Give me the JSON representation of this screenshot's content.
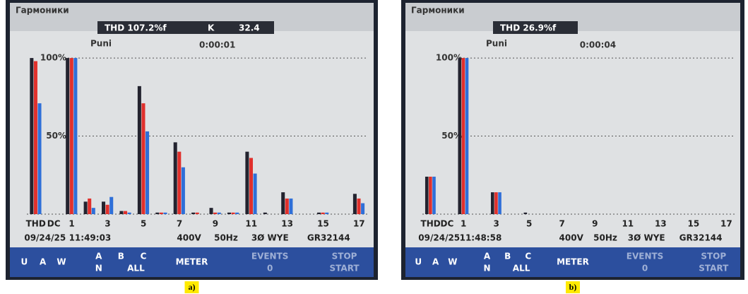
{
  "chart_data": [
    {
      "type": "bar",
      "screen_title": "Гармоники",
      "readouts": [
        "THD 107.2%f",
        "K",
        "32.4"
      ],
      "y_label": "Puni",
      "timer": "0:00:01",
      "categories": [
        "THD",
        "DC",
        "1",
        null,
        "3",
        null,
        "5",
        null,
        "7",
        null,
        "9",
        null,
        "11",
        null,
        "13",
        null,
        "15",
        null,
        "17"
      ],
      "series": [
        {
          "color": "#23232f",
          "values": [
            100,
            0,
            100,
            8,
            8,
            2,
            82,
            1,
            46,
            1,
            4,
            1,
            40,
            1,
            14,
            0,
            1,
            0,
            13
          ]
        },
        {
          "color": "#e0302c",
          "values": [
            98,
            0,
            100,
            10,
            6,
            2,
            71,
            1,
            40,
            1,
            1,
            1,
            36,
            0,
            10,
            0,
            1,
            0,
            10
          ]
        },
        {
          "color": "#2f6fd8",
          "values": [
            71,
            0,
            100,
            4,
            11,
            1,
            53,
            1,
            30,
            0,
            1,
            1,
            26,
            0,
            10,
            0,
            1,
            0,
            7
          ]
        }
      ],
      "ylim": [
        0,
        110
      ],
      "yticks": [
        {
          "value": 50,
          "label": "50%"
        },
        {
          "value": 100,
          "label": "100%"
        }
      ],
      "grid": true,
      "status": [
        "09/24/25",
        "11:49:03",
        "400V",
        "50Hz",
        "3Ø WYE",
        "GR32144"
      ],
      "softkeys": [
        "U",
        "A",
        "W",
        "A",
        "B",
        "C",
        "N",
        "ALL",
        "METER",
        "EVENTS",
        "0",
        "STOP",
        "START"
      ],
      "caption": "a)"
    },
    {
      "type": "bar",
      "screen_title": "Гармоники",
      "readouts": [
        "THD 26.9%f"
      ],
      "y_label": "Puni",
      "timer": "0:00:04",
      "categories": [
        "THD",
        "DC",
        "1",
        null,
        "3",
        null,
        "5",
        null,
        "7",
        null,
        "9",
        null,
        "11",
        null,
        "13",
        null,
        "15",
        null,
        "17"
      ],
      "series": [
        {
          "color": "#23232f",
          "values": [
            24,
            0,
            100,
            0,
            14,
            0,
            1,
            0,
            0,
            0,
            0,
            0,
            0,
            0,
            0,
            0,
            0,
            0,
            0
          ]
        },
        {
          "color": "#e0302c",
          "values": [
            24,
            0,
            100,
            0,
            14,
            0,
            0,
            0,
            0,
            0,
            0,
            0,
            0,
            0,
            0,
            0,
            0,
            0,
            0
          ]
        },
        {
          "color": "#2f6fd8",
          "values": [
            24,
            0,
            100,
            0,
            14,
            0,
            0,
            0,
            0,
            0,
            0,
            0,
            0,
            0,
            0,
            0,
            0,
            0,
            0
          ]
        }
      ],
      "ylim": [
        0,
        110
      ],
      "yticks": [
        {
          "value": 50,
          "label": "50%"
        },
        {
          "value": 100,
          "label": "100%"
        }
      ],
      "grid": true,
      "status": [
        "09/24/25",
        "11:48:58",
        "400V",
        "50Hz",
        "3Ø WYE",
        "GR32144"
      ],
      "softkeys": [
        "U",
        "A",
        "W",
        "A",
        "B",
        "C",
        "N",
        "ALL",
        "METER",
        "EVENTS",
        "0",
        "STOP",
        "START"
      ],
      "caption": "b)"
    }
  ]
}
